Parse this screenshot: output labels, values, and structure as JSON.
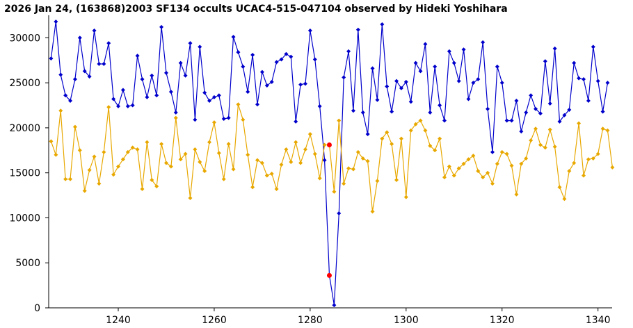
{
  "chart_data": {
    "type": "line",
    "title": "2026 Jan 24, (163868)2003 SF134 occults UCAC4-515-047104 observed by Hideki Yoshihara",
    "xlabel": "",
    "ylabel": "",
    "xlim": [
      1225.5,
      1342.8
    ],
    "ylim": [
      0,
      32500
    ],
    "x_ticks": [
      1240,
      1260,
      1280,
      1300,
      1320,
      1340
    ],
    "y_ticks": [
      0,
      5000,
      10000,
      15000,
      20000,
      25000,
      30000
    ],
    "grid": false,
    "legend": "none",
    "x_start": 1226,
    "series": [
      {
        "color": "#0000cc",
        "values": [
          27700,
          31800,
          25900,
          23600,
          23000,
          25400,
          30000,
          26300,
          25700,
          30800,
          27100,
          27100,
          29400,
          23200,
          22400,
          24200,
          22400,
          22500,
          28000,
          25400,
          23400,
          25800,
          23600,
          31200,
          26100,
          24000,
          21700,
          27200,
          25800,
          29400,
          20900,
          29000,
          23900,
          23000,
          23400,
          23600,
          21000,
          21100,
          30100,
          28400,
          26800,
          24000,
          28100,
          22600,
          26200,
          24700,
          25100,
          27300,
          27600,
          28200,
          27900,
          20700,
          24800,
          24900,
          30800,
          27600,
          22400,
          16400,
          3600,
          300,
          10500,
          25600,
          28500,
          21900,
          30900,
          21700,
          19300,
          26600,
          23100,
          31500,
          24600,
          21800,
          25200,
          24400,
          25100,
          22900,
          27200,
          26300,
          29300,
          21700,
          26800,
          22500,
          20800,
          28500,
          27200,
          25200,
          28700,
          23200,
          25000,
          25400,
          29500,
          22100,
          17300,
          26800,
          25000,
          20800,
          20800,
          23000,
          19600,
          21700,
          23600,
          22100,
          21600,
          27400,
          22700,
          28800,
          20700,
          21400,
          22000,
          27200,
          25500,
          25400,
          23000,
          29000,
          25200,
          21800,
          25000
        ]
      },
      {
        "color": "#e8a800",
        "values": [
          18500,
          17000,
          21900,
          14300,
          14300,
          20100,
          17500,
          13000,
          15300,
          16800,
          13800,
          17300,
          22300,
          14800,
          15700,
          16500,
          17300,
          17800,
          17600,
          13200,
          18400,
          14200,
          13500,
          18200,
          16100,
          15700,
          21100,
          16500,
          17100,
          12200,
          17600,
          16200,
          15200,
          18400,
          20600,
          17200,
          14300,
          18200,
          15400,
          22600,
          20900,
          17000,
          13400,
          16400,
          16100,
          14700,
          14900,
          13200,
          15900,
          17600,
          16200,
          18400,
          16100,
          17600,
          19300,
          17100,
          14400,
          18100,
          18100,
          12900,
          20800,
          13800,
          15500,
          15400,
          17300,
          16600,
          16300,
          10700,
          14100,
          18800,
          19500,
          18200,
          14200,
          18800,
          12300,
          19700,
          20400,
          20800,
          19700,
          18000,
          17500,
          18800,
          14500,
          15700,
          14700,
          15500,
          16000,
          16500,
          16900,
          15200,
          14500,
          15000,
          13800,
          16000,
          17300,
          17100,
          15800,
          12600,
          16000,
          16600,
          18600,
          19900,
          18100,
          17800,
          19800,
          17900,
          13400,
          12100,
          15200,
          16100,
          20500,
          14700,
          16500,
          16600,
          17100,
          19900,
          19700,
          15600
        ]
      }
    ],
    "highlights": [
      {
        "x": 1284,
        "y": 18100,
        "color": "#ff0000"
      },
      {
        "x": 1284,
        "y": 3600,
        "color": "#ff0000"
      }
    ]
  }
}
